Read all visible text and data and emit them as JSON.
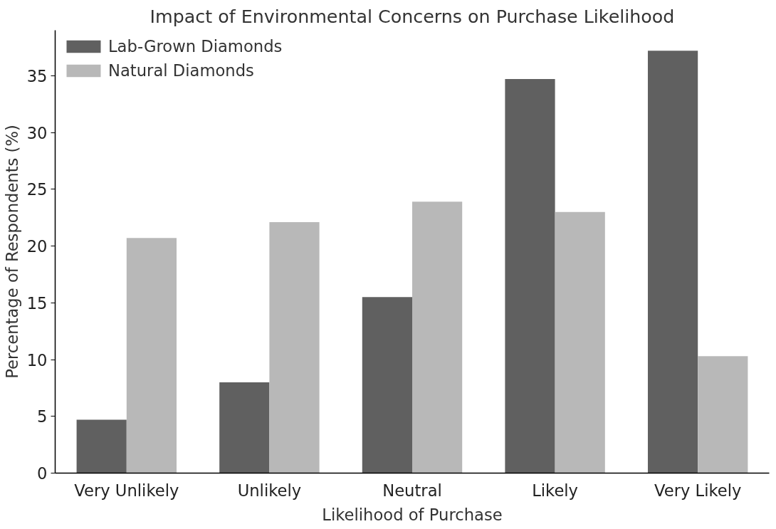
{
  "chart_data": {
    "type": "bar",
    "title": "Impact of Environmental Concerns on Purchase Likelihood",
    "xlabel": "Likelihood of Purchase",
    "ylabel": "Percentage of Respondents (%)",
    "categories": [
      "Very Unlikely",
      "Unlikely",
      "Neutral",
      "Likely",
      "Very Likely"
    ],
    "series": [
      {
        "name": "Lab-Grown Diamonds",
        "color": "#606060",
        "values": [
          4.7,
          8.0,
          15.5,
          34.7,
          37.2
        ]
      },
      {
        "name": "Natural Diamonds",
        "color": "#b8b8b8",
        "values": [
          20.7,
          22.1,
          23.9,
          23.0,
          10.3
        ]
      }
    ],
    "ylim": [
      0,
      39
    ],
    "yticks": [
      0,
      5,
      10,
      15,
      20,
      25,
      30,
      35
    ],
    "grid": false,
    "legend": "top left"
  }
}
